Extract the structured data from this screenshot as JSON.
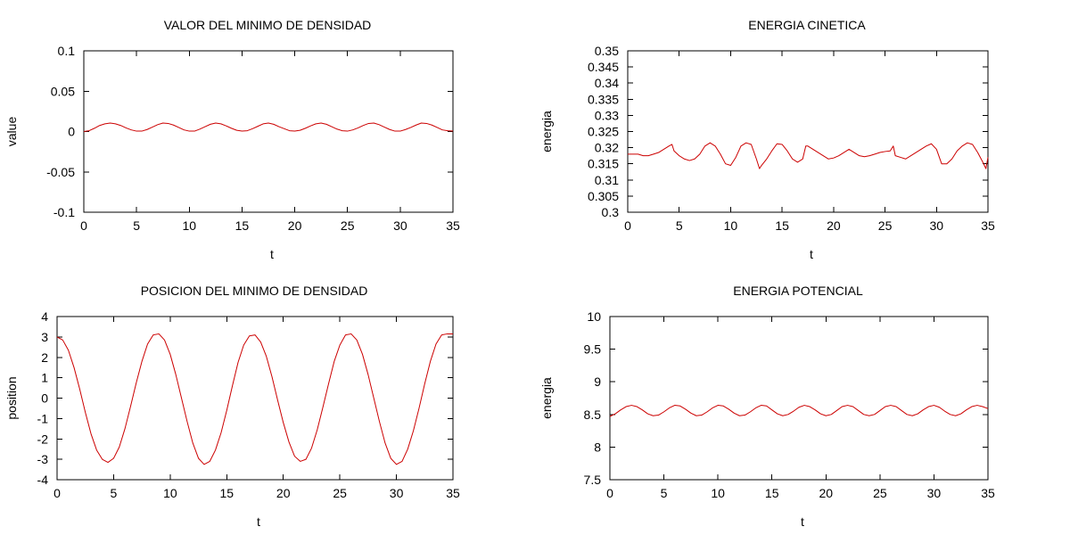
{
  "chart_data": [
    {
      "id": "valor",
      "type": "line",
      "title": "VALOR DEL MINIMO DE DENSIDAD",
      "xlabel": "t",
      "ylabel": "value",
      "xlim": [
        0,
        35
      ],
      "ylim": [
        -0.1,
        0.1
      ],
      "xticks": [
        "0",
        "5",
        "10",
        "15",
        "20",
        "25",
        "30",
        "35"
      ],
      "yticks": [
        "-0.1",
        "-0.05",
        "0",
        "0.05",
        "0.1"
      ],
      "grid": false,
      "series": [
        {
          "color": "#cc0000",
          "x": [
            0,
            0.5,
            1,
            1.5,
            2,
            2.5,
            3,
            3.5,
            4,
            4.5,
            5,
            5.5,
            6,
            6.5,
            7,
            7.5,
            8,
            8.5,
            9,
            9.5,
            10,
            10.5,
            11,
            11.5,
            12,
            12.5,
            13,
            13.5,
            14,
            14.5,
            15,
            15.5,
            16,
            16.5,
            17,
            17.5,
            18,
            18.5,
            19,
            19.5,
            20,
            20.5,
            21,
            21.5,
            22,
            22.5,
            23,
            23.5,
            24,
            24.5,
            25,
            25.5,
            26,
            26.5,
            27,
            27.5,
            28,
            28.5,
            29,
            29.5,
            30,
            30.5,
            31,
            31.5,
            32,
            32.5,
            33,
            33.5,
            34,
            34.5,
            35
          ],
          "y": [
            0.0,
            0.001,
            0.004,
            0.0075,
            0.0095,
            0.0105,
            0.0095,
            0.0075,
            0.0045,
            0.002,
            0.0005,
            0.0005,
            0.0025,
            0.0055,
            0.0085,
            0.0105,
            0.01,
            0.008,
            0.005,
            0.002,
            0.0005,
            0.0005,
            0.003,
            0.006,
            0.009,
            0.0105,
            0.0095,
            0.007,
            0.004,
            0.0015,
            0.0005,
            0.001,
            0.0035,
            0.0065,
            0.0095,
            0.0105,
            0.009,
            0.006,
            0.0035,
            0.001,
            0.0005,
            0.0015,
            0.004,
            0.007,
            0.0095,
            0.0105,
            0.009,
            0.006,
            0.003,
            0.001,
            0.0005,
            0.002,
            0.0045,
            0.0075,
            0.01,
            0.0105,
            0.0085,
            0.0055,
            0.0025,
            0.0005,
            0.0005,
            0.0025,
            0.005,
            0.008,
            0.0105,
            0.01,
            0.008,
            0.005,
            0.002,
            0.001,
            0.0005
          ]
        }
      ]
    },
    {
      "id": "cinetica",
      "type": "line",
      "title": "ENERGIA CINETICA",
      "xlabel": "t",
      "ylabel": "energia",
      "xlim": [
        0,
        35
      ],
      "ylim": [
        0.3,
        0.35
      ],
      "xticks": [
        "0",
        "5",
        "10",
        "15",
        "20",
        "25",
        "30",
        "35"
      ],
      "yticks": [
        "0.3",
        "0.305",
        "0.31",
        "0.315",
        "0.32",
        "0.325",
        "0.33",
        "0.335",
        "0.34",
        "0.345",
        "0.35"
      ],
      "grid": false,
      "series": [
        {
          "color": "#cc0000",
          "x": [
            0,
            0.5,
            1,
            1.5,
            2,
            2.5,
            3,
            3.5,
            4,
            4.3,
            4.5,
            5,
            5.5,
            6,
            6.5,
            7,
            7.5,
            8,
            8.5,
            9,
            9.5,
            10,
            10.5,
            11,
            11.5,
            12,
            12.5,
            12.8,
            13,
            13.5,
            14,
            14.5,
            15,
            15.5,
            16,
            16.5,
            17,
            17.3,
            17.5,
            18,
            18.5,
            19,
            19.5,
            20,
            20.5,
            21,
            21.5,
            22,
            22.5,
            23,
            23.5,
            24,
            24.5,
            25,
            25.5,
            25.8,
            26,
            26.5,
            27,
            27.5,
            28,
            28.5,
            29,
            29.5,
            30,
            30.5,
            31,
            31.5,
            32,
            32.5,
            33,
            33.5,
            34,
            34.5,
            34.8,
            35
          ],
          "y": [
            0.318,
            0.318,
            0.318,
            0.3175,
            0.3175,
            0.318,
            0.3185,
            0.3195,
            0.3205,
            0.321,
            0.319,
            0.3175,
            0.3165,
            0.316,
            0.3165,
            0.318,
            0.3205,
            0.3215,
            0.3205,
            0.318,
            0.315,
            0.3145,
            0.317,
            0.3205,
            0.3215,
            0.321,
            0.3165,
            0.3135,
            0.3145,
            0.3165,
            0.319,
            0.3212,
            0.321,
            0.319,
            0.3165,
            0.3155,
            0.3165,
            0.3205,
            0.3205,
            0.3195,
            0.3185,
            0.3175,
            0.3165,
            0.3168,
            0.3175,
            0.3185,
            0.3195,
            0.3185,
            0.3175,
            0.3172,
            0.3175,
            0.318,
            0.3185,
            0.3188,
            0.319,
            0.3205,
            0.3175,
            0.317,
            0.3165,
            0.3175,
            0.3185,
            0.3195,
            0.3205,
            0.3212,
            0.3195,
            0.315,
            0.315,
            0.3165,
            0.319,
            0.3205,
            0.3215,
            0.321,
            0.3185,
            0.3155,
            0.3135,
            0.317
          ]
        }
      ]
    },
    {
      "id": "posicion",
      "type": "line",
      "title": "POSICION DEL MINIMO DE DENSIDAD",
      "xlabel": "t",
      "ylabel": "position",
      "xlim": [
        0,
        35
      ],
      "ylim": [
        -4,
        4
      ],
      "xticks": [
        "0",
        "5",
        "10",
        "15",
        "20",
        "25",
        "30",
        "35"
      ],
      "yticks": [
        "-4",
        "-3",
        "-2",
        "-1",
        "0",
        "1",
        "2",
        "3",
        "4"
      ],
      "grid": false,
      "series": [
        {
          "color": "#cc0000",
          "x": [
            0,
            0.5,
            1,
            1.5,
            2,
            2.5,
            3,
            3.5,
            4,
            4.5,
            5,
            5.5,
            6,
            6.5,
            7,
            7.5,
            8,
            8.5,
            9,
            9.5,
            10,
            10.5,
            11,
            11.5,
            12,
            12.5,
            13,
            13.5,
            14,
            14.5,
            15,
            15.5,
            16,
            16.5,
            17,
            17.5,
            18,
            18.5,
            19,
            19.5,
            20,
            20.5,
            21,
            21.5,
            22,
            22.5,
            23,
            23.5,
            24,
            24.5,
            25,
            25.5,
            26,
            26.5,
            27,
            27.5,
            28,
            28.5,
            29,
            29.5,
            30,
            30.5,
            31,
            31.5,
            32,
            32.5,
            33,
            33.5,
            34,
            34.5,
            35
          ],
          "y": [
            3.0,
            2.85,
            2.35,
            1.5,
            0.45,
            -0.7,
            -1.75,
            -2.55,
            -3.0,
            -3.15,
            -2.95,
            -2.4,
            -1.5,
            -0.4,
            0.75,
            1.8,
            2.65,
            3.1,
            3.15,
            2.85,
            2.15,
            1.15,
            0.0,
            -1.15,
            -2.2,
            -2.95,
            -3.25,
            -3.1,
            -2.55,
            -1.7,
            -0.6,
            0.6,
            1.75,
            2.6,
            3.05,
            3.1,
            2.75,
            2.05,
            1.05,
            -0.1,
            -1.2,
            -2.15,
            -2.85,
            -3.1,
            -3.0,
            -2.45,
            -1.55,
            -0.45,
            0.7,
            1.8,
            2.6,
            3.1,
            3.15,
            2.85,
            2.15,
            1.15,
            0.0,
            -1.15,
            -2.2,
            -2.95,
            -3.25,
            -3.1,
            -2.5,
            -1.6,
            -0.5,
            0.7,
            1.8,
            2.65,
            3.1,
            3.15,
            3.15
          ]
        }
      ]
    },
    {
      "id": "potencial",
      "type": "line",
      "title": "ENERGIA POTENCIAL",
      "xlabel": "t",
      "ylabel": "energia",
      "xlim": [
        0,
        35
      ],
      "ylim": [
        7.5,
        10
      ],
      "xticks": [
        "0",
        "5",
        "10",
        "15",
        "20",
        "25",
        "30",
        "35"
      ],
      "yticks": [
        "7.5",
        "8",
        "8.5",
        "9",
        "9.5",
        "10"
      ],
      "grid": false,
      "series": [
        {
          "color": "#cc0000",
          "x": [
            0,
            0.5,
            1,
            1.5,
            2,
            2.5,
            3,
            3.5,
            4,
            4.5,
            5,
            5.5,
            6,
            6.5,
            7,
            7.5,
            8,
            8.5,
            9,
            9.5,
            10,
            10.5,
            11,
            11.5,
            12,
            12.5,
            13,
            13.5,
            14,
            14.5,
            15,
            15.5,
            16,
            16.5,
            17,
            17.5,
            18,
            18.5,
            19,
            19.5,
            20,
            20.5,
            21,
            21.5,
            22,
            22.5,
            23,
            23.5,
            24,
            24.5,
            25,
            25.5,
            26,
            26.5,
            27,
            27.5,
            28,
            28.5,
            29,
            29.5,
            30,
            30.5,
            31,
            31.5,
            32,
            32.5,
            33,
            33.5,
            34,
            34.5,
            35
          ],
          "y": [
            8.47,
            8.51,
            8.57,
            8.62,
            8.64,
            8.62,
            8.57,
            8.51,
            8.48,
            8.49,
            8.54,
            8.6,
            8.64,
            8.63,
            8.58,
            8.52,
            8.48,
            8.49,
            8.54,
            8.6,
            8.64,
            8.63,
            8.58,
            8.52,
            8.48,
            8.49,
            8.54,
            8.6,
            8.64,
            8.63,
            8.57,
            8.51,
            8.48,
            8.5,
            8.55,
            8.61,
            8.64,
            8.62,
            8.57,
            8.51,
            8.48,
            8.5,
            8.56,
            8.62,
            8.64,
            8.62,
            8.56,
            8.5,
            8.48,
            8.5,
            8.56,
            8.62,
            8.64,
            8.62,
            8.56,
            8.5,
            8.48,
            8.51,
            8.57,
            8.62,
            8.64,
            8.61,
            8.55,
            8.5,
            8.48,
            8.51,
            8.57,
            8.62,
            8.64,
            8.62,
            8.59
          ]
        }
      ]
    }
  ]
}
